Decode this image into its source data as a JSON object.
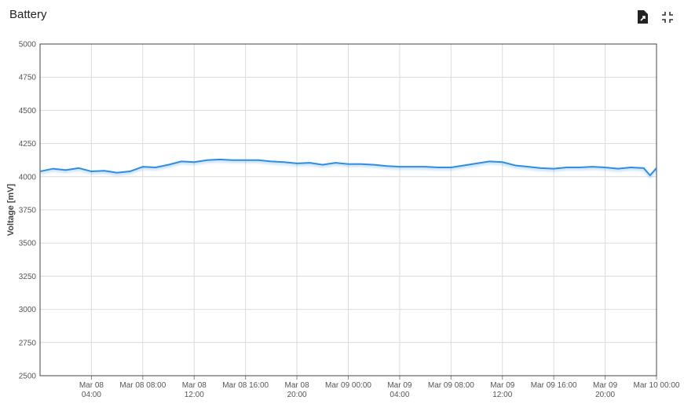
{
  "chart_data": {
    "type": "line",
    "title": "Battery",
    "y_label": "Voltage [mV]",
    "x": [
      "Mar 08 00:00",
      "Mar 08 01:00",
      "Mar 08 02:00",
      "Mar 08 03:00",
      "Mar 08 04:00",
      "Mar 08 05:00",
      "Mar 08 06:00",
      "Mar 08 07:00",
      "Mar 08 08:00",
      "Mar 08 09:00",
      "Mar 08 10:00",
      "Mar 08 11:00",
      "Mar 08 12:00",
      "Mar 08 13:00",
      "Mar 08 14:00",
      "Mar 08 15:00",
      "Mar 08 16:00",
      "Mar 08 17:00",
      "Mar 08 18:00",
      "Mar 08 19:00",
      "Mar 08 20:00",
      "Mar 08 21:00",
      "Mar 08 22:00",
      "Mar 08 23:00",
      "Mar 09 00:00",
      "Mar 09 01:00",
      "Mar 09 02:00",
      "Mar 09 03:00",
      "Mar 09 04:00",
      "Mar 09 05:00",
      "Mar 09 06:00",
      "Mar 09 07:00",
      "Mar 09 08:00",
      "Mar 09 09:00",
      "Mar 09 10:00",
      "Mar 09 11:00",
      "Mar 09 12:00",
      "Mar 09 13:00",
      "Mar 09 14:00",
      "Mar 09 15:00",
      "Mar 09 16:00",
      "Mar 09 17:00",
      "Mar 09 18:00",
      "Mar 09 19:00",
      "Mar 09 20:00",
      "Mar 09 21:00",
      "Mar 09 22:00",
      "Mar 09 23:00",
      "Mar 09 23:30",
      "Mar 10 00:00"
    ],
    "series": [
      {
        "name": "Voltage",
        "color": "#2f8de4",
        "values": [
          4040,
          4060,
          4050,
          4065,
          4040,
          4045,
          4030,
          4040,
          4075,
          4070,
          4090,
          4115,
          4110,
          4125,
          4130,
          4125,
          4125,
          4125,
          4115,
          4110,
          4100,
          4105,
          4090,
          4105,
          4095,
          4095,
          4090,
          4080,
          4075,
          4075,
          4075,
          4070,
          4070,
          4085,
          4100,
          4115,
          4110,
          4085,
          4075,
          4065,
          4060,
          4070,
          4070,
          4075,
          4070,
          4060,
          4070,
          4065,
          4010,
          4065
        ]
      }
    ],
    "xlim": [
      "Mar 08 00:00",
      "Mar 10 00:00"
    ],
    "xticks": [
      {
        "value": "Mar 08 04:00",
        "label": "Mar 08\n04:00"
      },
      {
        "value": "Mar 08 08:00",
        "label": "Mar 08 08:00"
      },
      {
        "value": "Mar 08 12:00",
        "label": "Mar 08\n12:00"
      },
      {
        "value": "Mar 08 16:00",
        "label": "Mar 08 16:00"
      },
      {
        "value": "Mar 08 20:00",
        "label": "Mar 08\n20:00"
      },
      {
        "value": "Mar 09 00:00",
        "label": "Mar 09 00:00"
      },
      {
        "value": "Mar 09 04:00",
        "label": "Mar 09\n04:00"
      },
      {
        "value": "Mar 09 08:00",
        "label": "Mar 09 08:00"
      },
      {
        "value": "Mar 09 12:00",
        "label": "Mar 09\n12:00"
      },
      {
        "value": "Mar 09 16:00",
        "label": "Mar 09 16:00"
      },
      {
        "value": "Mar 09 20:00",
        "label": "Mar 09\n20:00"
      },
      {
        "value": "Mar 10 00:00",
        "label": "Mar 10 00:00"
      }
    ],
    "ylim": [
      2500,
      5000
    ],
    "yticks": [
      2500,
      2750,
      3000,
      3250,
      3500,
      3750,
      4000,
      4250,
      4500,
      4750,
      5000
    ],
    "grid": true
  }
}
